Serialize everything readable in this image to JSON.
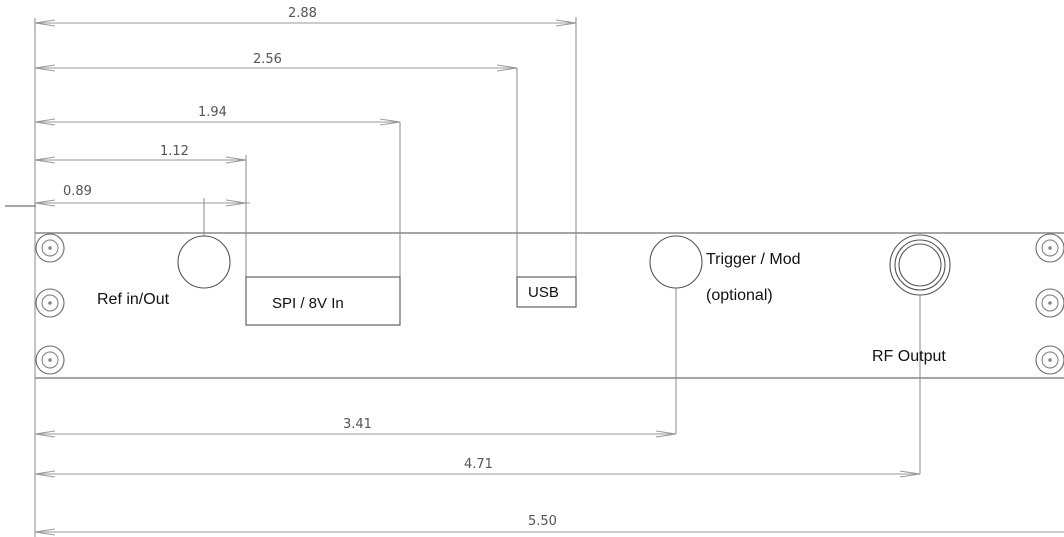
{
  "dimensions": {
    "usb_right": "2.88",
    "usb_left": "2.56",
    "spi_right": "1.94",
    "spi_left": "1.12",
    "ref_center": "0.89",
    "trigger_center": "3.41",
    "rf_center": "4.71",
    "overall_width": "5.50"
  },
  "labels": {
    "ref": "Ref in/Out",
    "spi": "SPI / 8V In",
    "usb": "USB",
    "trigger_line1": "Trigger / Mod",
    "trigger_line2": "(optional)",
    "rf": "RF Output"
  }
}
